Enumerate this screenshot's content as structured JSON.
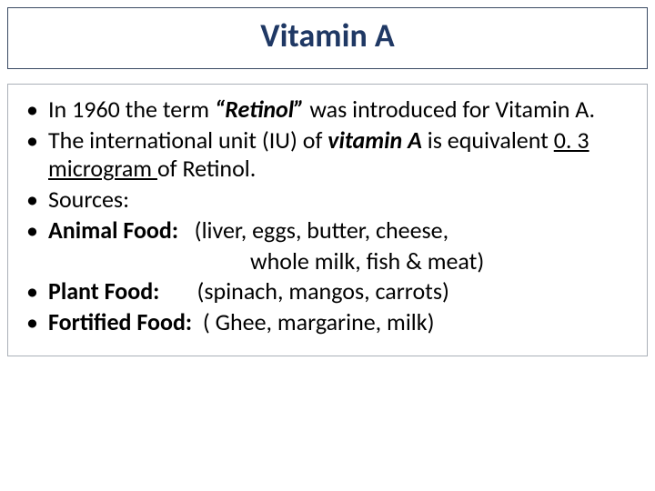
{
  "title": "Vitamin A",
  "colors": {
    "title_color": "#1f3864",
    "title_border": "#3a4a63",
    "content_border": "#aab0b8",
    "text_color": "#000000",
    "background": "#ffffff"
  },
  "typography": {
    "title_fontsize": 36,
    "title_weight": 700,
    "body_fontsize": 26,
    "font_family": "Calibri"
  },
  "bullets": {
    "b1_pre": "In 1960 the term ",
    "b1_em": "“Retinol”",
    "b1_post": " was introduced for Vitamin A.",
    "b2_pre": "The international unit (IU) of ",
    "b2_em": "vitamin A",
    "b2_mid": " is equivalent ",
    "b2_ul": "0. 3 microgram ",
    "b2_post": "of Retinol.",
    "b3": "Sources:",
    "b4_label": "Animal Food:",
    "b4_val": "   (liver, eggs, butter, cheese,",
    "b4_cont": "whole milk, fish & meat)",
    "b5_label": "Plant Food:",
    "b5_val": "       (spinach, mangos, carrots)",
    "b6_label": "Fortified Food:",
    "b6_val": "  ( Ghee, margarine, milk)"
  }
}
